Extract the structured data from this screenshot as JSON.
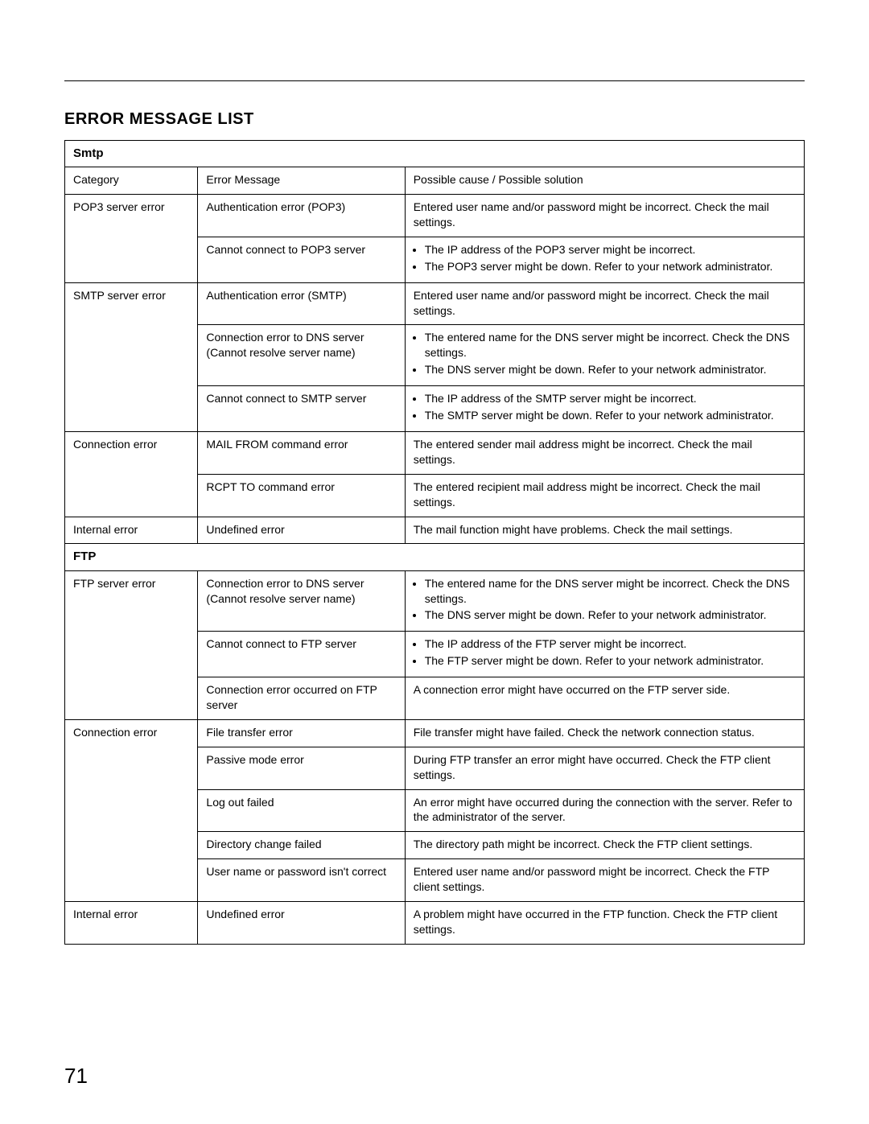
{
  "page": {
    "title": "Error Message List",
    "number": "71"
  },
  "columns": {
    "category": "Category",
    "message": "Error Message",
    "solution": "Possible cause / Possible solution"
  },
  "sections": [
    {
      "key": "smtp",
      "label": "Smtp",
      "groups": [
        {
          "category": "POP3 server error",
          "rows": [
            {
              "msg": "Authentication error (POP3)",
              "sol_text": "Entered user name and/or password might be incorrect. Check the mail settings."
            },
            {
              "msg": "Cannot connect to POP3 server",
              "sol_list": [
                "The IP address of the POP3 server might be incorrect.",
                "The POP3 server might be down. Refer to your network administrator."
              ]
            }
          ]
        },
        {
          "category": "SMTP server error",
          "rows": [
            {
              "msg": "Authentication error (SMTP)",
              "sol_text": "Entered user name and/or password might be incorrect. Check the mail settings."
            },
            {
              "msg": "Connection error to DNS server (Cannot resolve server name)",
              "sol_list": [
                "The entered name for the DNS server might be incorrect. Check the DNS settings.",
                "The DNS server might be down. Refer to your network administrator."
              ]
            },
            {
              "msg": "Cannot connect to SMTP server",
              "sol_list": [
                "The IP address of the SMTP server might be incorrect.",
                "The SMTP server might be down. Refer to your network administrator."
              ]
            }
          ]
        },
        {
          "category": "Connection error",
          "rows": [
            {
              "msg": "MAIL FROM command error",
              "sol_text": "The entered sender mail address might be incorrect. Check the mail settings."
            },
            {
              "msg": "RCPT TO command error",
              "sol_text": "The entered recipient mail address might be incorrect. Check the mail settings."
            }
          ]
        },
        {
          "category": "Internal error",
          "rows": [
            {
              "msg": "Undefined error",
              "sol_text": "The mail function might have problems. Check the mail settings."
            }
          ]
        }
      ]
    },
    {
      "key": "ftp",
      "label": "FTP",
      "groups": [
        {
          "category": "FTP server error",
          "rows": [
            {
              "msg": "Connection error to DNS server (Cannot resolve server name)",
              "sol_list": [
                "The entered name for the DNS server might be incorrect. Check the DNS settings.",
                "The DNS server might be down. Refer to your network administrator."
              ]
            },
            {
              "msg": "Cannot connect to FTP server",
              "sol_list": [
                "The IP address of the FTP server might be incorrect.",
                "The FTP server might be down. Refer to your network administrator."
              ]
            },
            {
              "msg": "Connection error occurred on FTP server",
              "sol_text": "A connection error might have occurred on the FTP server side."
            }
          ]
        },
        {
          "category": "Connection error",
          "rows": [
            {
              "msg": "File transfer error",
              "sol_text": "File transfer might have failed. Check the network connection status."
            },
            {
              "msg": "Passive mode error",
              "sol_text": "During FTP transfer an error might have occurred. Check the FTP client settings."
            },
            {
              "msg": "Log out failed",
              "sol_text": "An error might have occurred during the connection with the server. Refer to the administrator of the server."
            },
            {
              "msg": "Directory change failed",
              "sol_text": "The directory path might be incorrect. Check the FTP client settings."
            },
            {
              "msg": "User name or password isn't correct",
              "sol_text": "Entered user name and/or password might be incorrect. Check the FTP client settings."
            }
          ]
        },
        {
          "category": "Internal error",
          "rows": [
            {
              "msg": "Undefined error",
              "sol_text": "A problem might have occurred in the FTP function. Check the FTP client settings."
            }
          ]
        }
      ]
    }
  ]
}
